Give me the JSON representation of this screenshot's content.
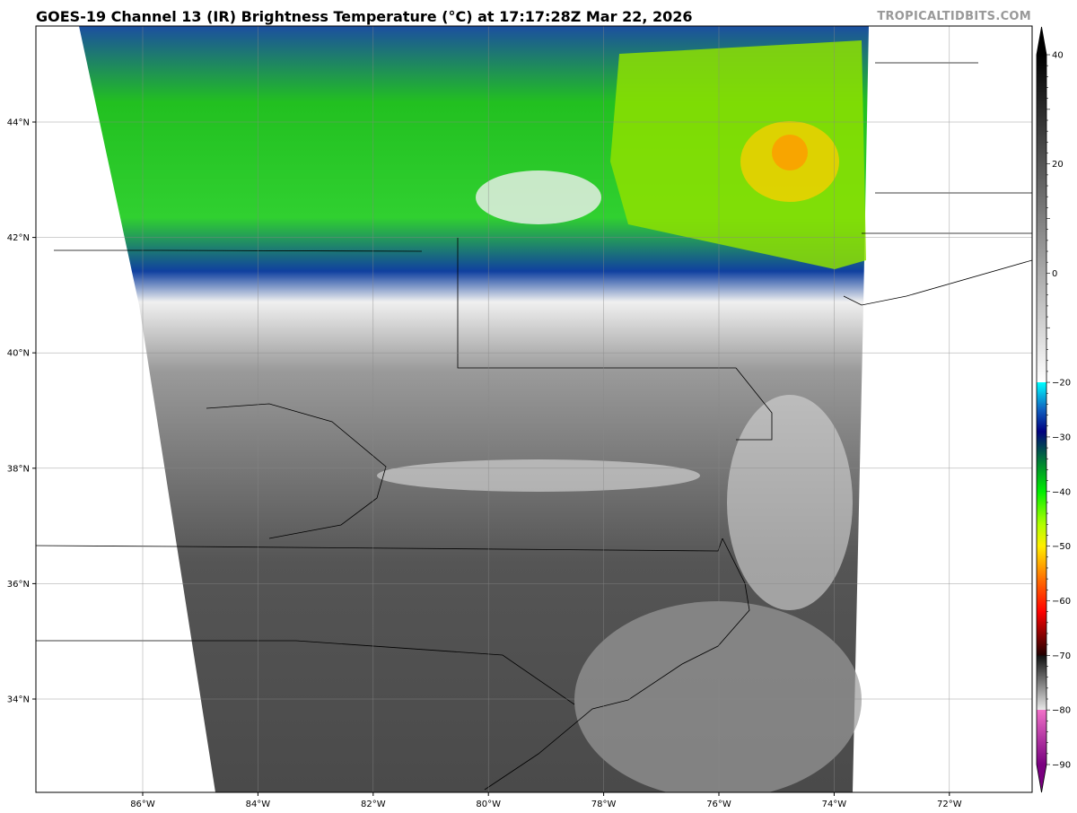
{
  "header": {
    "title": "GOES-19 Channel 13 (IR) Brightness Temperature (°C) at 17:17:28Z Mar 22, 2026",
    "brand": "TROPICALTIDBITS.COM"
  },
  "map": {
    "lon_ticks": [
      "86°W",
      "84°W",
      "82°W",
      "80°W",
      "78°W",
      "76°W",
      "74°W",
      "72°W"
    ],
    "lat_ticks": [
      "44°N",
      "42°N",
      "40°N",
      "38°N",
      "36°N",
      "34°N"
    ],
    "gridlines": true
  },
  "colorbar": {
    "ticks": [
      "40",
      "20",
      "0",
      "−20",
      "−30",
      "−40",
      "−50",
      "−60",
      "−70",
      "−80",
      "−90"
    ],
    "tick_values": [
      40,
      20,
      0,
      -20,
      -30,
      -40,
      -50,
      -60,
      -70,
      -80,
      -90
    ],
    "range": [
      -90,
      40
    ],
    "stops": [
      {
        "v": -90,
        "c": "#7a0080"
      },
      {
        "v": -80.01,
        "c": "#f070c8"
      },
      {
        "v": -80,
        "c": "#e8e8e8"
      },
      {
        "v": -70.01,
        "c": "#101010"
      },
      {
        "v": -70,
        "c": "#200000"
      },
      {
        "v": -62,
        "c": "#ff0000"
      },
      {
        "v": -56,
        "c": "#ff7000"
      },
      {
        "v": -50,
        "c": "#ffee00"
      },
      {
        "v": -46,
        "c": "#b0ff00"
      },
      {
        "v": -40,
        "c": "#00ee00"
      },
      {
        "v": -35,
        "c": "#008830"
      },
      {
        "v": -31,
        "c": "#003060"
      },
      {
        "v": -29,
        "c": "#000080"
      },
      {
        "v": -25,
        "c": "#1060c0"
      },
      {
        "v": -20.01,
        "c": "#00ffff"
      },
      {
        "v": -20,
        "c": "#ffffff"
      },
      {
        "v": 40,
        "c": "#000000"
      }
    ]
  }
}
